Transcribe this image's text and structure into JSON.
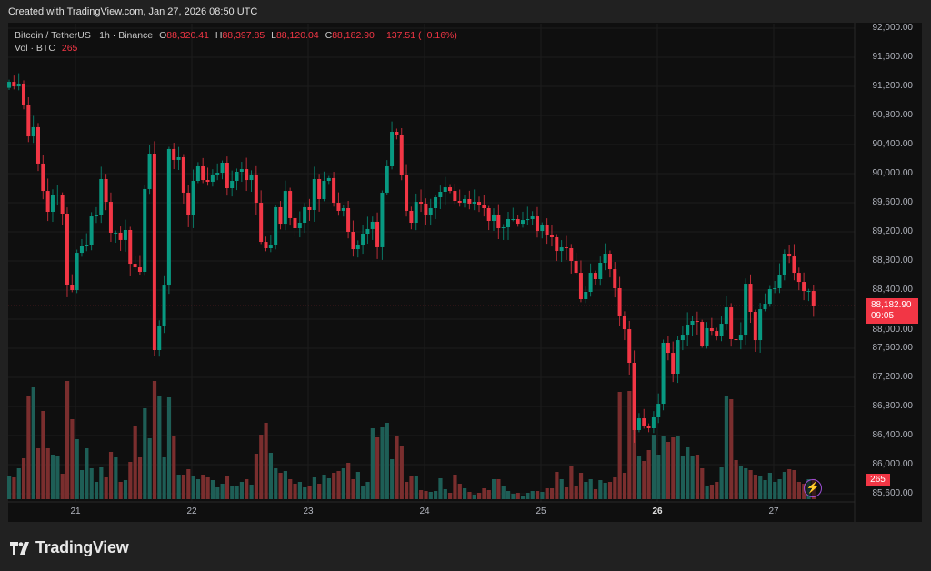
{
  "header": {
    "created": "Created with TradingView.com, Jan 27, 2026 08:50 UTC"
  },
  "legend": {
    "symbol": "Bitcoin / TetherUS · 1h · Binance",
    "open_label": "O",
    "open": "88,320.41",
    "high_label": "H",
    "high": "88,397.85",
    "low_label": "L",
    "low": "88,120.04",
    "close_label": "C",
    "close": "88,182.90",
    "change": "−137.51 (−0.16%)",
    "vol_label": "Vol · BTC",
    "vol": "265"
  },
  "price_tag": {
    "price": "88,182.90",
    "countdown": "09:05"
  },
  "volume_tag": "265",
  "brand": "TradingView",
  "colors": {
    "up": "#089981",
    "down": "#f23645",
    "up_vol": "#1e5e56",
    "down_vol": "#7a2e2e",
    "bg": "#0f0f0f"
  },
  "chart_data": {
    "type": "candlestick",
    "interval": "1h",
    "ylim": [
      85600,
      92000
    ],
    "y_ticks": [
      "92,000.00",
      "91,600.00",
      "91,200.00",
      "90,800.00",
      "90,400.00",
      "90,000.00",
      "89,600.00",
      "89,200.00",
      "88,800.00",
      "88,400.00",
      "88,000.00",
      "87,600.00",
      "87,200.00",
      "86,800.00",
      "86,400.00",
      "86,000.00",
      "85,600.00"
    ],
    "x_ticks": [
      "21",
      "22",
      "23",
      "24",
      "25",
      "26",
      "27"
    ],
    "first_open": 91180,
    "close": [
      91262,
      91200,
      91238,
      90950,
      90512,
      90638,
      90138,
      89762,
      89475,
      89712,
      89712,
      89450,
      88475,
      88400,
      88912,
      89000,
      89025,
      89412,
      89425,
      89925,
      89612,
      89188,
      89188,
      89088,
      89225,
      88762,
      88712,
      88650,
      89788,
      90275,
      87575,
      87912,
      88462,
      90338,
      90188,
      90225,
      89738,
      89425,
      89900,
      90100,
      89912,
      89888,
      89988,
      90012,
      90150,
      89800,
      89900,
      90025,
      90062,
      89912,
      89988,
      89600,
      89062,
      88975,
      89025,
      89538,
      89312,
      89762,
      89388,
      89250,
      89325,
      89538,
      89500,
      89925,
      89650,
      89900,
      89938,
      89600,
      89488,
      89525,
      89200,
      88962,
      89025,
      89175,
      89238,
      89338,
      88988,
      89738,
      90100,
      90575,
      90525,
      89975,
      89488,
      89325,
      89612,
      89588,
      89425,
      89525,
      89675,
      89750,
      89812,
      89762,
      89625,
      89600,
      89650,
      89588,
      89612,
      89575,
      89525,
      89350,
      89438,
      89250,
      89262,
      89375,
      89375,
      89312,
      89362,
      89375,
      89412,
      89212,
      89300,
      89150,
      89125,
      88937,
      88987,
      88975,
      88800,
      88637,
      88275,
      88375,
      88637,
      88550,
      88775,
      88900,
      88687,
      88425,
      88050,
      87862,
      87400,
      86475,
      86637,
      86537,
      86500,
      86650,
      86837,
      87675,
      87537,
      87250,
      87712,
      87787,
      87925,
      87975,
      87962,
      87637,
      87875,
      87837,
      87775,
      87937,
      88162,
      87725,
      87712,
      87787,
      88487,
      88100,
      87712,
      88137,
      88212,
      88412,
      88425,
      88612,
      88900,
      88862,
      88637,
      88512,
      88387,
      88387,
      88182.9
    ],
    "volume": [
      312,
      288,
      408,
      540,
      1356,
      1476,
      672,
      1164,
      672,
      588,
      564,
      336,
      1560,
      1056,
      792,
      384,
      672,
      408,
      228,
      420,
      288,
      624,
      552,
      228,
      252,
      492,
      960,
      552,
      1200,
      804,
      1560,
      1356,
      552,
      1344,
      828,
      324,
      324,
      396,
      300,
      264,
      324,
      288,
      252,
      156,
      204,
      312,
      180,
      180,
      228,
      264,
      192,
      600,
      852,
      1008,
      612,
      408,
      348,
      372,
      264,
      204,
      228,
      156,
      168,
      288,
      204,
      324,
      276,
      348,
      372,
      408,
      480,
      264,
      360,
      168,
      228,
      936,
      816,
      948,
      1008,
      528,
      840,
      696,
      228,
      312,
      312,
      120,
      108,
      96,
      108,
      276,
      132,
      84,
      324,
      204,
      144,
      96,
      60,
      84,
      144,
      120,
      264,
      264,
      180,
      108,
      72,
      84,
      36,
      84,
      108,
      108,
      96,
      144,
      144,
      360,
      264,
      156,
      432,
      180,
      348,
      228,
      264,
      132,
      252,
      216,
      228,
      288,
      1416,
      348,
      1428,
      1428,
      564,
      504,
      648,
      852,
      588,
      840,
      756,
      816,
      828,
      576,
      684,
      576,
      588,
      408,
      180,
      192,
      228,
      420,
      1368,
      1320,
      516,
      444,
      408,
      384,
      324,
      300,
      252,
      348,
      228,
      264,
      360,
      396,
      384,
      228,
      204,
      264,
      265
    ],
    "last_price": 88182.9
  }
}
